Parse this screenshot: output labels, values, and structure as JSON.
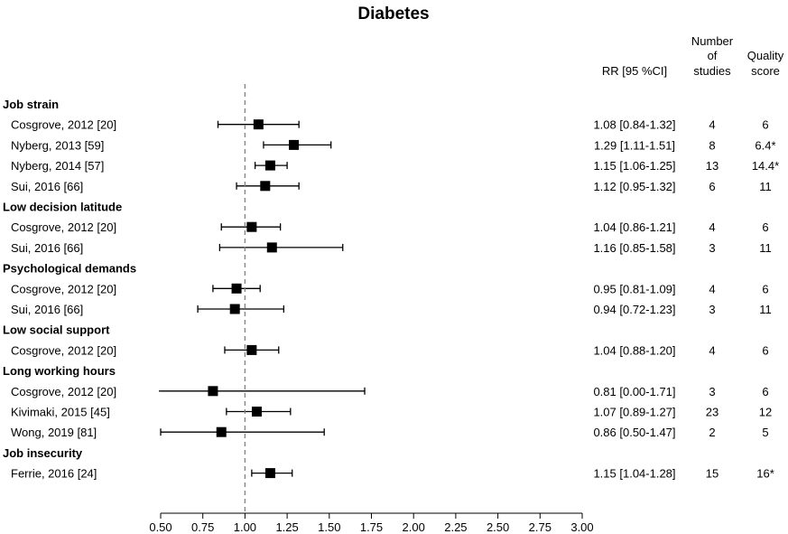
{
  "chart_data": {
    "type": "forest",
    "title": "Diabetes",
    "xlim": [
      0.5,
      3.0
    ],
    "x_ticks": [
      "0.50",
      "0.75",
      "1.00",
      "1.25",
      "1.50",
      "1.75",
      "2.00",
      "2.25",
      "2.50",
      "2.75",
      "3.00"
    ],
    "reference_line": 1.0,
    "column_headers": {
      "rr": "RR [95 %CI]",
      "n_studies": [
        "Number",
        "of",
        "studies"
      ],
      "quality": [
        "Quality",
        "score"
      ]
    },
    "groups": [
      {
        "label": "Job strain",
        "rows": [
          {
            "study": "Cosgrove, 2012 [20]",
            "rr": 1.08,
            "lo": 0.84,
            "hi": 1.32,
            "rr_text": "1.08 [0.84-1.32]",
            "n": "4",
            "quality": "6"
          },
          {
            "study": "Nyberg, 2013 [59]",
            "rr": 1.29,
            "lo": 1.11,
            "hi": 1.51,
            "rr_text": "1.29 [1.11-1.51]",
            "n": "8",
            "quality": "6.4*"
          },
          {
            "study": "Nyberg, 2014 [57]",
            "rr": 1.15,
            "lo": 1.06,
            "hi": 1.25,
            "rr_text": "1.15 [1.06-1.25]",
            "n": "13",
            "quality": "14.4*"
          },
          {
            "study": "Sui, 2016 [66]",
            "rr": 1.12,
            "lo": 0.95,
            "hi": 1.32,
            "rr_text": "1.12 [0.95-1.32]",
            "n": "6",
            "quality": "11"
          }
        ]
      },
      {
        "label": "Low decision latitude",
        "rows": [
          {
            "study": "Cosgrove, 2012 [20]",
            "rr": 1.04,
            "lo": 0.86,
            "hi": 1.21,
            "rr_text": "1.04 [0.86-1.21]",
            "n": "4",
            "quality": "6"
          },
          {
            "study": "Sui, 2016 [66]",
            "rr": 1.16,
            "lo": 0.85,
            "hi": 1.58,
            "rr_text": "1.16 [0.85-1.58]",
            "n": "3",
            "quality": "11"
          }
        ]
      },
      {
        "label": "Psychological demands",
        "rows": [
          {
            "study": "Cosgrove, 2012 [20]",
            "rr": 0.95,
            "lo": 0.81,
            "hi": 1.09,
            "rr_text": "0.95 [0.81-1.09]",
            "n": "4",
            "quality": "6"
          },
          {
            "study": "Sui, 2016 [66]",
            "rr": 0.94,
            "lo": 0.72,
            "hi": 1.23,
            "rr_text": "0.94 [0.72-1.23]",
            "n": "3",
            "quality": "11"
          }
        ]
      },
      {
        "label": "Low social support",
        "rows": [
          {
            "study": "Cosgrove, 2012 [20]",
            "rr": 1.04,
            "lo": 0.88,
            "hi": 1.2,
            "rr_text": "1.04 [0.88-1.20]",
            "n": "4",
            "quality": "6"
          }
        ]
      },
      {
        "label": "Long working hours",
        "rows": [
          {
            "study": "Cosgrove, 2012 [20]",
            "rr": 0.81,
            "lo": 0.0,
            "hi": 1.71,
            "rr_text": "0.81 [0.00-1.71]",
            "n": "3",
            "quality": "6",
            "truncated_left": true
          },
          {
            "study": "Kivimaki, 2015 [45]",
            "rr": 1.07,
            "lo": 0.89,
            "hi": 1.27,
            "rr_text": "1.07 [0.89-1.27]",
            "n": "23",
            "quality": "12"
          },
          {
            "study": "Wong, 2019 [81]",
            "rr": 0.86,
            "lo": 0.5,
            "hi": 1.47,
            "rr_text": "0.86 [0.50-1.47]",
            "n": "2",
            "quality": "5"
          }
        ]
      },
      {
        "label": "Job insecurity",
        "rows": [
          {
            "study": "Ferrie, 2016 [24]",
            "rr": 1.15,
            "lo": 1.04,
            "hi": 1.28,
            "rr_text": "1.15 [1.04-1.28]",
            "n": "15",
            "quality": "16*"
          }
        ]
      }
    ]
  }
}
